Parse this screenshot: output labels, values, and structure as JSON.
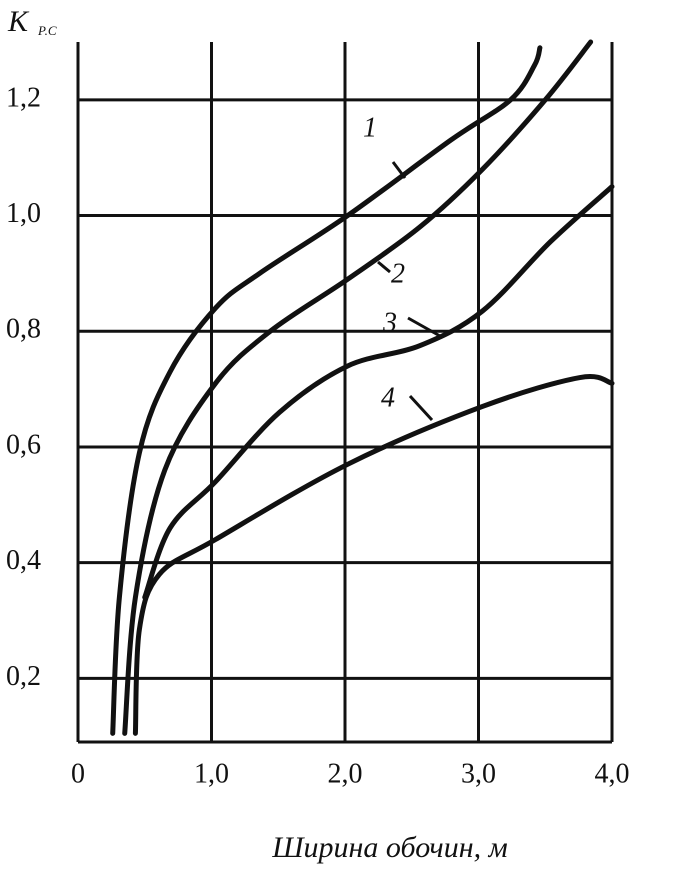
{
  "chart_data": {
    "type": "line",
    "y_label": "К",
    "y_label_sub": "Р.С",
    "x_label": "Ширина обочин, м",
    "xlim": [
      0,
      4.0
    ],
    "ylim": [
      0.09,
      1.3
    ],
    "xticks": [
      0,
      {
        "value": 1,
        "label": "1,0"
      },
      {
        "value": 2,
        "label": "2,0"
      },
      {
        "value": 3,
        "label": "3,0"
      },
      {
        "value": 4,
        "label": "4,0"
      }
    ],
    "yticks": [
      {
        "value": 0.2,
        "label": "0,2"
      },
      {
        "value": 0.4,
        "label": "0,4"
      },
      {
        "value": 0.6,
        "label": "0,6"
      },
      {
        "value": 0.8,
        "label": "0,8"
      },
      {
        "value": 1.0,
        "label": "1,0"
      },
      {
        "value": 1.2,
        "label": "1,2"
      }
    ],
    "grid": true,
    "series": [
      {
        "name": "1",
        "color": "#111111",
        "x": [
          0.26,
          0.31,
          0.46,
          0.69,
          1.03,
          1.36,
          2.02,
          2.79,
          3.24,
          3.42,
          3.46
        ],
        "values": [
          0.105,
          0.34,
          0.59,
          0.73,
          0.84,
          0.9,
          1.0,
          1.13,
          1.2,
          1.26,
          1.29
        ]
      },
      {
        "name": "2",
        "color": "#111111",
        "x": [
          0.35,
          0.43,
          0.65,
          1.03,
          1.44,
          2.02,
          2.56,
          3.03,
          3.5,
          3.84
        ],
        "values": [
          0.105,
          0.34,
          0.56,
          0.71,
          0.8,
          0.89,
          0.98,
          1.08,
          1.2,
          1.3
        ]
      },
      {
        "name": "3",
        "color": "#111111",
        "x": [
          0.5,
          0.69,
          1.03,
          1.51,
          2.02,
          2.56,
          3.03,
          3.54,
          4.0
        ],
        "values": [
          0.34,
          0.46,
          0.54,
          0.66,
          0.74,
          0.775,
          0.835,
          0.955,
          1.05
        ]
      },
      {
        "name": "4",
        "color": "#111111",
        "x": [
          0.43,
          0.46,
          0.61,
          1.03,
          2.02,
          3.03,
          3.76,
          4.0
        ],
        "values": [
          0.105,
          0.285,
          0.38,
          0.44,
          0.57,
          0.67,
          0.72,
          0.71
        ]
      }
    ]
  }
}
